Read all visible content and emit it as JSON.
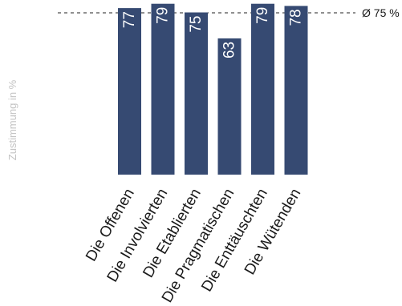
{
  "chart_data": {
    "type": "bar",
    "categories": [
      "Die Offenen",
      "Die Involvierten",
      "Die Etablierten",
      "Die Pragmatischen",
      "Die Enttäuschten",
      "Die Wütenden"
    ],
    "values": [
      77,
      79,
      75,
      63,
      79,
      78
    ],
    "ylabel": "Zustimmung in %",
    "average": {
      "value": 75,
      "label": "Ø 75 %"
    },
    "colors": {
      "bar": "#364a72",
      "bar_label": "#ffffff",
      "avg_line": "#222222"
    }
  }
}
